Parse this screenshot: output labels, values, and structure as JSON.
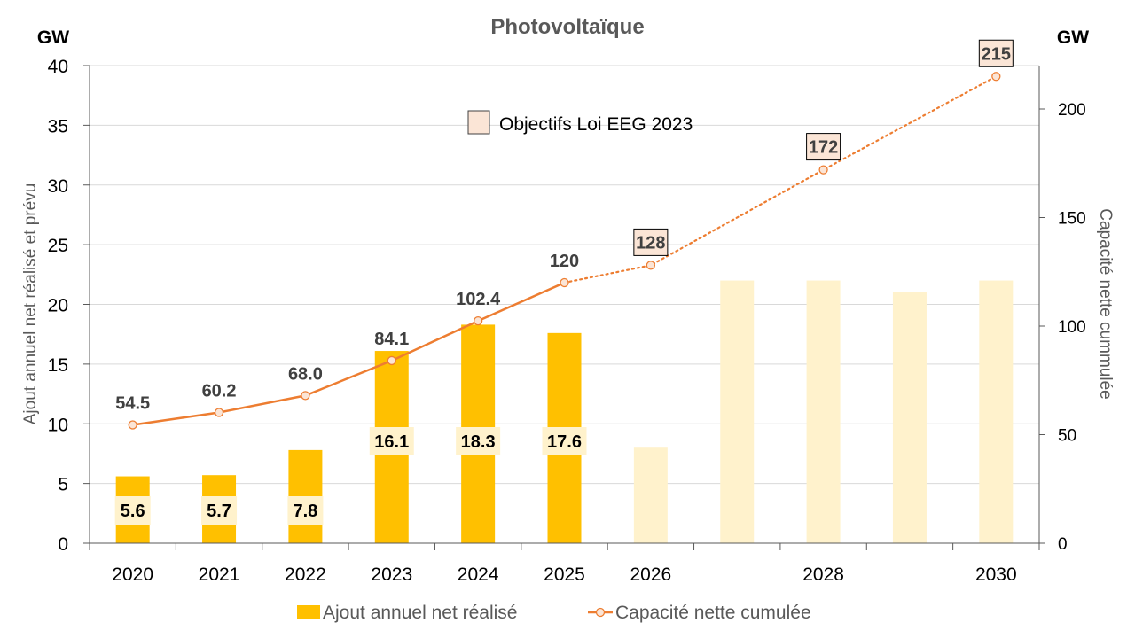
{
  "chart_data": {
    "type": "bar+line",
    "title": "Photovoltaïque",
    "unit_left": "GW",
    "unit_right": "GW",
    "ylabel_left": "Ajout annuel net réalisé et prévu",
    "ylabel_right": "Capacité nette cummulée",
    "ylim_left": [
      0,
      40
    ],
    "yticks_left": [
      "0",
      "5",
      "10",
      "15",
      "20",
      "25",
      "30",
      "35",
      "40"
    ],
    "ylim_right": [
      0,
      220
    ],
    "yticks_right": [
      "0",
      "50",
      "100",
      "150",
      "200"
    ],
    "years": [
      2020,
      2021,
      2022,
      2023,
      2024,
      2025,
      2026,
      2027,
      2028,
      2029,
      2030
    ],
    "xtick_labels": [
      "2020",
      "2021",
      "2022",
      "2023",
      "2024",
      "2025",
      "2026",
      "",
      "2028",
      "",
      "2030"
    ],
    "bars": {
      "name": "Ajout annuel net réalisé",
      "actual_values": [
        5.6,
        5.7,
        7.8,
        16.1,
        18.3,
        17.6
      ],
      "actual_labels": [
        "5.6",
        "5.7",
        "7.8",
        "16.1",
        "18.3",
        "17.6"
      ],
      "target_values": [
        8.0,
        22.0,
        22.0,
        21.0,
        22.0
      ],
      "target_name": "Objectifs Loi EEG 2023"
    },
    "line": {
      "name": "Capacité nette cumulée",
      "actual_x": [
        2020,
        2021,
        2022,
        2023,
        2024,
        2025
      ],
      "actual_values": [
        54.5,
        60.2,
        68.0,
        84.1,
        102.4,
        120
      ],
      "actual_labels": [
        "54.5",
        "60.2",
        "68.0",
        "84.1",
        "102.4",
        "120"
      ],
      "target_x": [
        2025,
        2026,
        2028,
        2030
      ],
      "target_values": [
        120,
        128,
        172,
        215
      ],
      "target_labels": [
        "128",
        "172",
        "215"
      ]
    },
    "legend": {
      "bars_label": "Ajout annuel net réalisé",
      "line_label": "Capacité nette cumulée",
      "target_label": "Objectifs Loi EEG 2023"
    },
    "colors": {
      "bar_actual": "#FFC000",
      "bar_target": "#FFF2CC",
      "line": "#ED7D31",
      "marker_fill": "#FBE5D6",
      "label_box": "#FBE5D6",
      "bar_label_box": "#FFF2CC",
      "grid": "#D9D9D9",
      "axis": "#595959",
      "text_dark": "#404040",
      "title": "#595959"
    }
  }
}
